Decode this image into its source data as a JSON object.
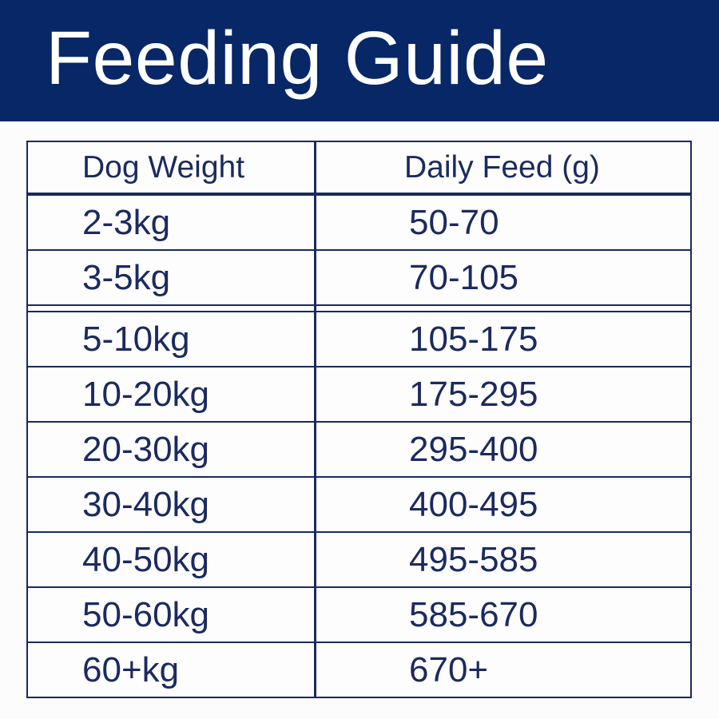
{
  "chart_data": {
    "type": "table",
    "title": "Feeding Guide",
    "columns": [
      "Dog Weight",
      "Daily Feed (g)"
    ],
    "rows": [
      [
        "2-3kg",
        "50-70"
      ],
      [
        "3-5kg",
        "70-105"
      ],
      [
        "5-10kg",
        "105-175"
      ],
      [
        "10-20kg",
        "175-295"
      ],
      [
        "20-30kg",
        "295-400"
      ],
      [
        "30-40kg",
        "400-495"
      ],
      [
        "40-50kg",
        "495-585"
      ],
      [
        "50-60kg",
        "585-670"
      ],
      [
        "60+kg",
        "670+"
      ]
    ],
    "layout": "title banner on top, two-column bordered table below, small white section gap after 3-5kg row"
  },
  "colors": {
    "banner_bg": "#072767",
    "banner_text": "#ffffff",
    "table_border": "#1a2a5e",
    "table_text": "#1b2a5f",
    "page_bg": "#fcfcfd"
  }
}
